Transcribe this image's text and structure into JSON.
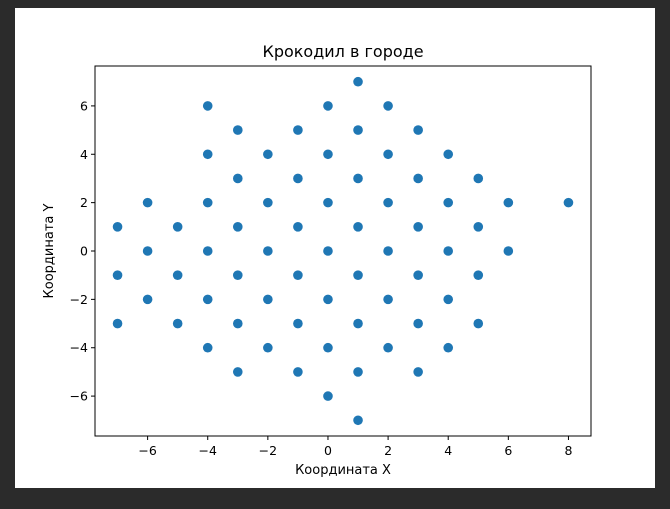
{
  "chart_data": {
    "type": "scatter",
    "title": "Крокодил в городе",
    "xlabel": "Координата X",
    "ylabel": "Координата Y",
    "xlim": [
      -7.75,
      8.75
    ],
    "ylim": [
      -7.65,
      7.65
    ],
    "xticks": [
      -6,
      -4,
      -2,
      0,
      2,
      4,
      6,
      8
    ],
    "yticks": [
      -6,
      -4,
      -2,
      0,
      2,
      4,
      6
    ],
    "xtick_labels": [
      "−6",
      "−4",
      "−2",
      "0",
      "2",
      "4",
      "6",
      "8"
    ],
    "ytick_labels": [
      "−6",
      "−4",
      "−2",
      "0",
      "2",
      "4",
      "6"
    ],
    "grid": false,
    "point_color": "#1f77b4",
    "points": [
      [
        -7,
        1
      ],
      [
        -7,
        -1
      ],
      [
        -7,
        -3
      ],
      [
        -6,
        2
      ],
      [
        -6,
        0
      ],
      [
        -6,
        -2
      ],
      [
        -5,
        1
      ],
      [
        -5,
        -1
      ],
      [
        -5,
        -3
      ],
      [
        -4,
        6
      ],
      [
        -4,
        4
      ],
      [
        -4,
        2
      ],
      [
        -4,
        0
      ],
      [
        -4,
        -2
      ],
      [
        -4,
        -4
      ],
      [
        -3,
        5
      ],
      [
        -3,
        3
      ],
      [
        -3,
        1
      ],
      [
        -3,
        -1
      ],
      [
        -3,
        -3
      ],
      [
        -3,
        -5
      ],
      [
        -2,
        4
      ],
      [
        -2,
        2
      ],
      [
        -2,
        0
      ],
      [
        -2,
        -2
      ],
      [
        -2,
        -4
      ],
      [
        -1,
        5
      ],
      [
        -1,
        3
      ],
      [
        -1,
        1
      ],
      [
        -1,
        -1
      ],
      [
        -1,
        -3
      ],
      [
        -1,
        -5
      ],
      [
        0,
        6
      ],
      [
        0,
        4
      ],
      [
        0,
        2
      ],
      [
        0,
        0
      ],
      [
        0,
        -2
      ],
      [
        0,
        -4
      ],
      [
        0,
        -6
      ],
      [
        1,
        7
      ],
      [
        1,
        5
      ],
      [
        1,
        3
      ],
      [
        1,
        1
      ],
      [
        1,
        -1
      ],
      [
        1,
        -3
      ],
      [
        1,
        -5
      ],
      [
        1,
        -7
      ],
      [
        2,
        6
      ],
      [
        2,
        4
      ],
      [
        2,
        2
      ],
      [
        2,
        0
      ],
      [
        2,
        -2
      ],
      [
        2,
        -4
      ],
      [
        3,
        5
      ],
      [
        3,
        3
      ],
      [
        3,
        1
      ],
      [
        3,
        -1
      ],
      [
        3,
        -3
      ],
      [
        3,
        -5
      ],
      [
        4,
        4
      ],
      [
        4,
        2
      ],
      [
        4,
        0
      ],
      [
        4,
        -2
      ],
      [
        4,
        -4
      ],
      [
        5,
        3
      ],
      [
        5,
        1
      ],
      [
        5,
        -1
      ],
      [
        5,
        -3
      ],
      [
        6,
        2
      ],
      [
        6,
        0
      ],
      [
        8,
        2
      ]
    ]
  }
}
